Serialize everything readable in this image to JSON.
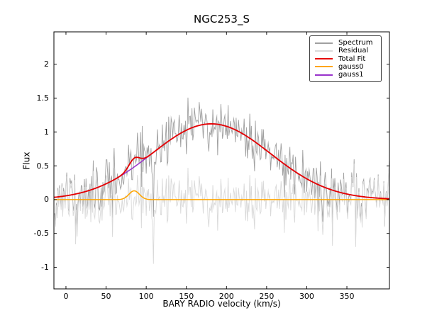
{
  "chart_data": {
    "type": "line",
    "title": "NGC253_S",
    "xlabel": "BARY RADIO velocity (km/s)",
    "ylabel": "Flux",
    "xlim": [
      -15,
      403
    ],
    "ylim": [
      -1.32,
      2.48
    ],
    "xticks": [
      0,
      50,
      100,
      150,
      200,
      250,
      300,
      350
    ],
    "yticks": [
      -1,
      -0.5,
      0,
      0.5,
      1,
      1.5,
      2
    ],
    "grid": false,
    "tick_direction": "in",
    "ticks_all_sides": true,
    "legend": {
      "position": "upper right",
      "entries": [
        {
          "label": "Spectrum",
          "color": "#a0a0a0",
          "linewidth": 1
        },
        {
          "label": "Residual",
          "color": "#d9d9d9",
          "linewidth": 1
        },
        {
          "label": "Total Fit",
          "color": "#e60000",
          "linewidth": 2
        },
        {
          "label": "gauss0",
          "color": "#ffa500",
          "linewidth": 2
        },
        {
          "label": "gauss1",
          "color": "#9932cc",
          "linewidth": 2
        }
      ]
    },
    "model": {
      "gauss0": {
        "amplitude": 0.13,
        "center": 85,
        "sigma": 6.5
      },
      "gauss1": {
        "amplitude": 1.12,
        "center": 181,
        "sigma": 74
      },
      "total_fit": "gauss0 + gauss1",
      "fit_peak_flux": 1.12
    },
    "spectrum": {
      "description": "noisy emission-line spectrum: spectrum = total_fit + noise; residual = spectrum - total_fit",
      "x_start": -15,
      "x_end": 403,
      "x_step": 1,
      "noise_sigma": 0.21,
      "noise_seed": 11,
      "outliers": [
        {
          "x": 109,
          "residual": -0.95
        },
        {
          "x": 12,
          "residual": -0.66
        },
        {
          "x": 152,
          "residual": 0.47
        },
        {
          "x": 361,
          "residual": -0.7
        }
      ]
    }
  }
}
